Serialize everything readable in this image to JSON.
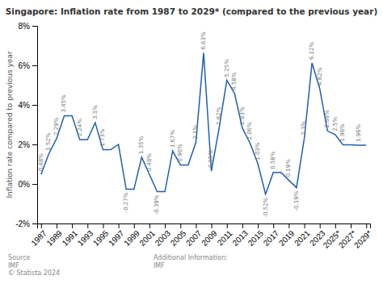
{
  "chart_data": {
    "type": "line",
    "title": "Singapore: Inflation rate from 1987 to 2029* (compared to the previous year)",
    "y_label": "Inflation rate compared to previous year",
    "x": [
      1987,
      1988,
      1989,
      1990,
      1991,
      1992,
      1993,
      1994,
      1995,
      1996,
      1997,
      1998,
      1999,
      2000,
      2001,
      2002,
      2003,
      2004,
      2005,
      2006,
      2007,
      2008,
      2009,
      2010,
      2011,
      2012,
      2013,
      2014,
      2015,
      2016,
      2017,
      2018,
      2019,
      2020,
      2021,
      2022,
      2023,
      2024,
      2025,
      2026,
      2027,
      2028,
      2029
    ],
    "values": [
      0.48,
      1.52,
      2.29,
      3.45,
      3.45,
      2.24,
      2.24,
      3.1,
      1.73,
      1.73,
      2.0,
      -0.27,
      -0.27,
      1.35,
      0.48,
      -0.39,
      -0.39,
      1.67,
      0.96,
      0.96,
      2.1,
      6.63,
      0.65,
      2.82,
      5.25,
      4.58,
      2.83,
      2.06,
      1.03,
      -0.52,
      0.58,
      0.58,
      0.19,
      -0.19,
      2.3,
      6.12,
      4.82,
      2.68,
      2.5,
      1.98,
      1.98,
      1.96,
      1.96
    ],
    "value_labels": [
      "0.48%",
      "1.52%",
      "2.29%",
      "3.45%",
      null,
      "2.24%",
      null,
      "3.1%",
      "1.73%",
      null,
      null,
      "-0.27%",
      null,
      "1.35%",
      "0.48%",
      "-0.39%",
      null,
      "1.67%",
      "0.96%",
      null,
      "2.1%",
      "6.63%",
      "0.65%",
      "2.82%",
      "5.25%",
      "4.58%",
      "2.83%",
      "2.06%",
      "1.03%",
      "-0.52%",
      "0.58%",
      null,
      "0.19%",
      "-0.19%",
      "2.3%",
      "6.12%",
      "4.82%",
      "2.68%",
      "2.5%",
      "1.98%",
      null,
      "1.96%",
      null
    ],
    "data_labels": true,
    "color": "#1f5fad",
    "xlim": [
      1986.5,
      2029.5
    ],
    "xticks": [
      1987,
      1989,
      1991,
      1993,
      1995,
      1997,
      1999,
      2001,
      2003,
      2005,
      2007,
      2009,
      2011,
      2013,
      2015,
      2017,
      2019,
      2021,
      2023,
      {
        "value": 2025,
        "label": "2025*"
      },
      {
        "value": 2027,
        "label": "2027*"
      },
      {
        "value": 2029,
        "label": "2029*"
      }
    ],
    "ylim": [
      -2,
      8
    ],
    "yticks": [
      {
        "value": -2,
        "label": "-2%"
      },
      {
        "value": 0,
        "label": "0%"
      },
      {
        "value": 2,
        "label": "2%"
      },
      {
        "value": 4,
        "label": "4%"
      },
      {
        "value": 6,
        "label": "6%"
      },
      {
        "value": 8,
        "label": "8%"
      }
    ],
    "grid": false,
    "annotations": [
      "Source\nIMF\n© Statista 2024",
      "Additional Information:\nIMF"
    ]
  }
}
